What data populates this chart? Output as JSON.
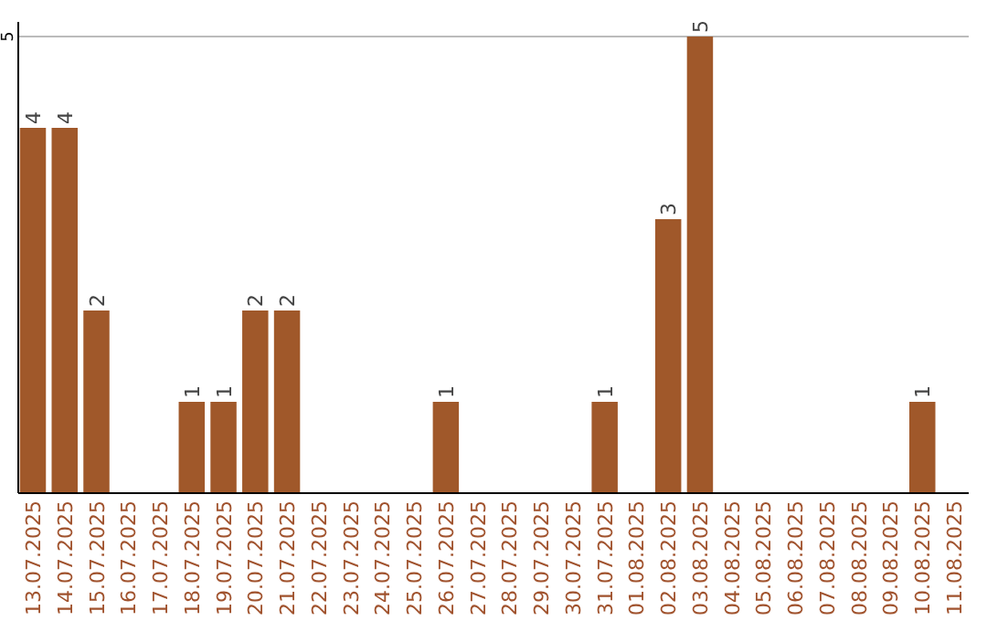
{
  "chart_data": {
    "type": "bar",
    "categories": [
      "13.07.2025",
      "14.07.2025",
      "15.07.2025",
      "16.07.2025",
      "17.07.2025",
      "18.07.2025",
      "19.07.2025",
      "20.07.2025",
      "21.07.2025",
      "22.07.2025",
      "23.07.2025",
      "24.07.2025",
      "25.07.2025",
      "26.07.2025",
      "27.07.2025",
      "28.07.2025",
      "29.07.2025",
      "30.07.2025",
      "31.07.2025",
      "01.08.2025",
      "02.08.2025",
      "03.08.2025",
      "04.08.2025",
      "05.08.2025",
      "06.08.2025",
      "07.08.2025",
      "08.08.2025",
      "09.08.2025",
      "10.08.2025",
      "11.08.2025"
    ],
    "values": [
      4,
      4,
      2,
      0,
      0,
      1,
      1,
      2,
      2,
      0,
      0,
      0,
      0,
      1,
      0,
      0,
      0,
      0,
      1,
      0,
      3,
      5,
      0,
      0,
      0,
      0,
      0,
      0,
      1,
      0
    ],
    "value_labels": [
      "4",
      "4",
      "2",
      null,
      null,
      "1",
      "1",
      "2",
      "2",
      null,
      null,
      null,
      null,
      "1",
      null,
      null,
      null,
      null,
      "1",
      null,
      "3",
      "5",
      null,
      null,
      null,
      null,
      null,
      null,
      "1",
      null
    ],
    "color": "#a0582a",
    "ylim": [
      0,
      5
    ],
    "yticks": [
      5
    ],
    "ref_lines": [
      {
        "axis": "y",
        "value": 5,
        "color": "#bbbbbb"
      }
    ]
  }
}
